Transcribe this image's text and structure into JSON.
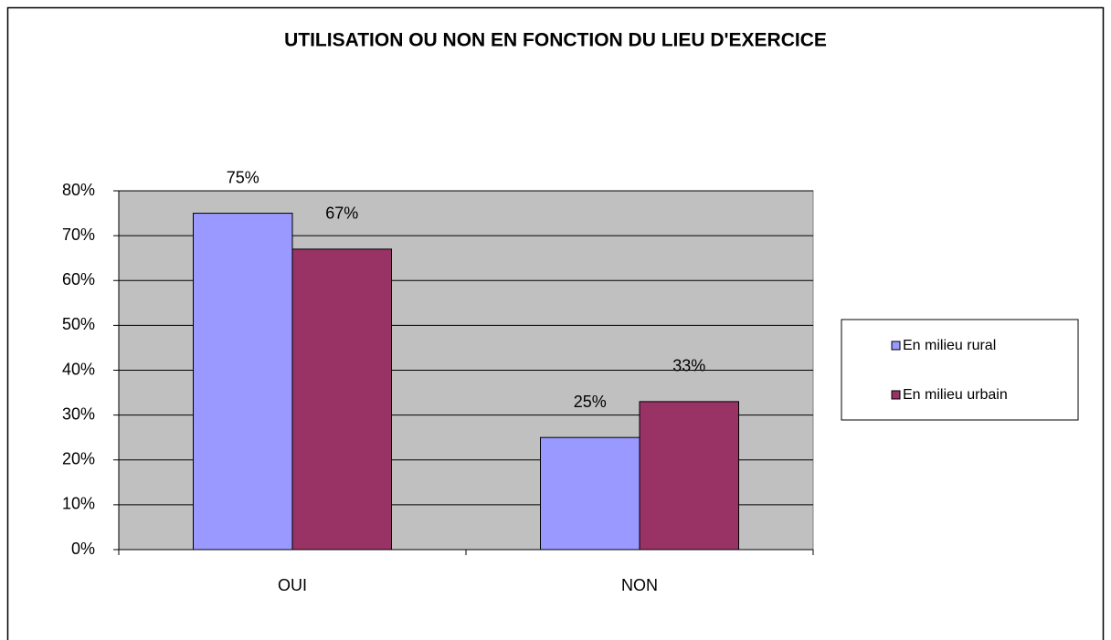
{
  "chart_data": {
    "type": "bar",
    "title": "UTILISATION OU NON EN FONCTION DU LIEU D'EXERCICE",
    "categories": [
      "OUI",
      "NON"
    ],
    "series": [
      {
        "name": "En milieu rural",
        "color": "#9999ff",
        "values": [
          75,
          25
        ],
        "value_labels": [
          "75%",
          "25%"
        ]
      },
      {
        "name": "En milieu urbain",
        "color": "#993366",
        "values": [
          67,
          33
        ],
        "value_labels": [
          "67%",
          "33%"
        ]
      }
    ],
    "ylim": [
      0,
      80
    ],
    "yticks": [
      {
        "value": 0,
        "label": "0%"
      },
      {
        "value": 10,
        "label": "10%"
      },
      {
        "value": 20,
        "label": "20%"
      },
      {
        "value": 30,
        "label": "30%"
      },
      {
        "value": 40,
        "label": "40%"
      },
      {
        "value": 50,
        "label": "50%"
      },
      {
        "value": 60,
        "label": "60%"
      },
      {
        "value": 70,
        "label": "70%"
      },
      {
        "value": 80,
        "label": "80%"
      }
    ],
    "grid": true,
    "legend": "right"
  }
}
